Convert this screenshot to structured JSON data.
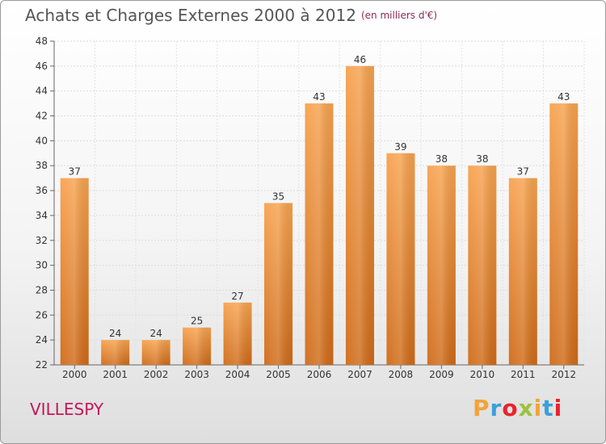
{
  "header": {
    "title": "Achats et Charges Externes 2000 à 2012",
    "unit": "(en milliers d'€)"
  },
  "footer": {
    "commune": "VILLESPY",
    "logo_letters": [
      "P",
      "r",
      "o",
      "x",
      "i",
      "t",
      "i"
    ],
    "logo_colors": [
      "#f2a33a",
      "#3aa0d8",
      "#e8232a",
      "#9bc23c",
      "#f2a33a",
      "#3aa0d8",
      "#e8232a"
    ]
  },
  "chart_data": {
    "type": "bar",
    "title": "Achats et Charges Externes 2000 à 2012",
    "subtitle": "(en milliers d'€)",
    "xlabel": "",
    "ylabel": "",
    "categories": [
      "2000",
      "2001",
      "2002",
      "2003",
      "2004",
      "2005",
      "2006",
      "2007",
      "2008",
      "2009",
      "2010",
      "2011",
      "2012"
    ],
    "values": [
      37,
      24,
      24,
      25,
      27,
      35,
      43,
      46,
      39,
      38,
      38,
      37,
      43
    ],
    "ylim": [
      22,
      48
    ],
    "yticks": [
      22,
      24,
      26,
      28,
      30,
      32,
      34,
      36,
      38,
      40,
      42,
      44,
      46,
      48
    ],
    "grid": true,
    "bar_color_top": "#f7a24e",
    "bar_color_bottom": "#cf6a17"
  }
}
